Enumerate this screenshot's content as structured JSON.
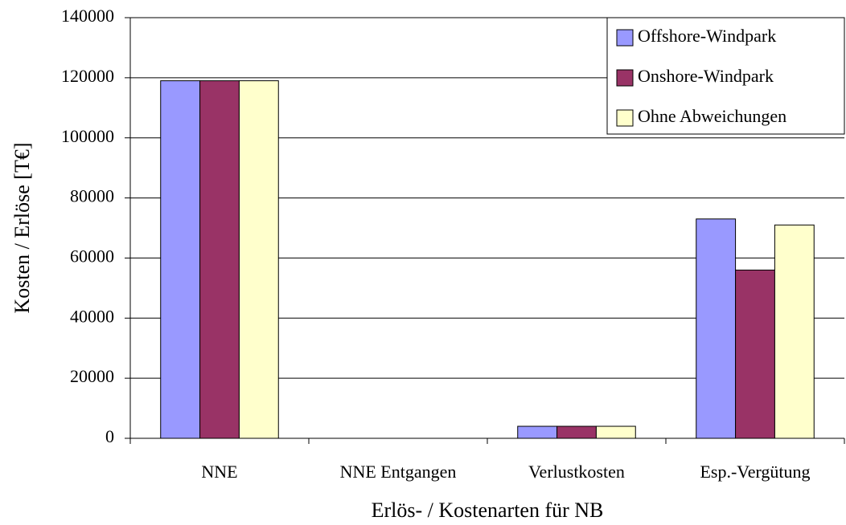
{
  "chart_data": {
    "type": "bar",
    "x_label": "Erlös- / Kostenarten für NB",
    "y_label": "Kosten / Erlöse [T€]",
    "categories": [
      "NNE",
      "NNE Entgangen",
      "Verlustkosten",
      "Esp.-Vergütung"
    ],
    "series": [
      {
        "name": "Offshore-Windpark",
        "color": "#9999ff",
        "values": [
          119000,
          0,
          4000,
          73000
        ]
      },
      {
        "name": "Onshore-Windpark",
        "color": "#993366",
        "values": [
          119000,
          0,
          4000,
          56000
        ]
      },
      {
        "name": "Ohne Abweichungen",
        "color": "#ffffcc",
        "values": [
          119000,
          0,
          4000,
          71000
        ]
      }
    ],
    "ylim": [
      0,
      140000
    ],
    "yticks": [
      0,
      20000,
      40000,
      60000,
      80000,
      100000,
      120000,
      140000
    ],
    "grid": true,
    "legend": "top-right"
  }
}
